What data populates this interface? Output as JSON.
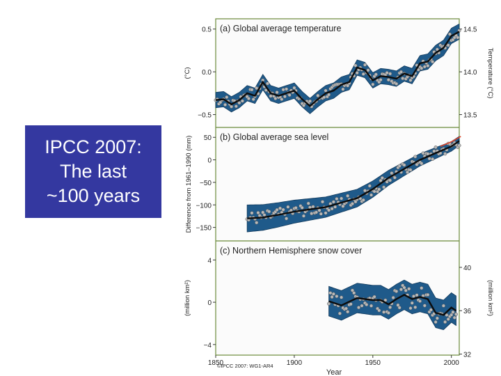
{
  "callout": {
    "line1": "IPCC 2007:",
    "line2": "The last",
    "line3": "~100 years"
  },
  "colors": {
    "band": "#1f5a8a",
    "bandOutline": "#123a5c",
    "curve": "#0c0c0c",
    "points": "#b9b9b9",
    "recent": "#e0452a",
    "panelBorder": "#6a8a3a"
  },
  "chart_data": {
    "type": "line",
    "title": "",
    "xlabel": "Year",
    "xlim": [
      1850,
      2005
    ],
    "xticks": [
      1850,
      1900,
      1950,
      2000
    ],
    "credit": "©IPCC 2007: WG1-AR4",
    "panels": [
      {
        "id": "a",
        "title": "(a) Global average temperature",
        "ylabel": "(°C)",
        "ylim": [
          -0.65,
          0.62
        ],
        "yticks": [
          -0.5,
          0.0,
          0.5
        ],
        "ytick_labels": [
          "−0.5",
          "0.0",
          "0.5"
        ],
        "right_ylabel": "Temperature (°C)",
        "right_ticks": [
          {
            "value": 0.5,
            "label": "14.5"
          },
          {
            "value": 0.0,
            "label": "14.0"
          },
          {
            "value": -0.5,
            "label": "13.5"
          }
        ],
        "x_start": 1850,
        "curve": [
          [
            1850,
            -0.33
          ],
          [
            1855,
            -0.32
          ],
          [
            1860,
            -0.38
          ],
          [
            1865,
            -0.33
          ],
          [
            1870,
            -0.25
          ],
          [
            1875,
            -0.28
          ],
          [
            1880,
            -0.12
          ],
          [
            1885,
            -0.25
          ],
          [
            1890,
            -0.28
          ],
          [
            1895,
            -0.25
          ],
          [
            1900,
            -0.22
          ],
          [
            1905,
            -0.32
          ],
          [
            1910,
            -0.4
          ],
          [
            1915,
            -0.32
          ],
          [
            1920,
            -0.25
          ],
          [
            1925,
            -0.22
          ],
          [
            1930,
            -0.15
          ],
          [
            1935,
            -0.12
          ],
          [
            1940,
            0.05
          ],
          [
            1945,
            0.02
          ],
          [
            1950,
            -0.1
          ],
          [
            1955,
            -0.05
          ],
          [
            1960,
            -0.06
          ],
          [
            1965,
            -0.08
          ],
          [
            1970,
            -0.02
          ],
          [
            1975,
            -0.05
          ],
          [
            1980,
            0.1
          ],
          [
            1985,
            0.12
          ],
          [
            1990,
            0.22
          ],
          [
            1995,
            0.28
          ],
          [
            2000,
            0.42
          ],
          [
            2005,
            0.47
          ]
        ],
        "uncertainty": 0.09
      },
      {
        "id": "b",
        "title": "(b) Global average sea level",
        "ylabel": "Difference from 1961–1990 (mm)",
        "ylim": [
          -180,
          72
        ],
        "yticks": [
          -150,
          -100,
          -50,
          0,
          50
        ],
        "ytick_labels": [
          "−150",
          "−100",
          "−50",
          "0",
          "50"
        ],
        "x_start": 1870,
        "curve": [
          [
            1870,
            -130
          ],
          [
            1880,
            -128
          ],
          [
            1890,
            -122
          ],
          [
            1900,
            -115
          ],
          [
            1910,
            -110
          ],
          [
            1920,
            -105
          ],
          [
            1930,
            -95
          ],
          [
            1940,
            -85
          ],
          [
            1950,
            -65
          ],
          [
            1960,
            -40
          ],
          [
            1970,
            -20
          ],
          [
            1980,
            0
          ],
          [
            1990,
            15
          ],
          [
            2000,
            30
          ],
          [
            2005,
            42
          ]
        ],
        "uncertainty_start": 30,
        "uncertainty_end": 10,
        "recent_trend": [
          [
            1993,
            30
          ],
          [
            2000,
            40
          ],
          [
            2006,
            52
          ]
        ]
      },
      {
        "id": "c",
        "title": "(c) Northern Hemisphere snow cover",
        "ylabel": "(million km²)",
        "ylim": [
          -5,
          5.8
        ],
        "yticks": [
          -4,
          0,
          4
        ],
        "ytick_labels": [
          "−4",
          "0",
          "4"
        ],
        "right_ylabel": "(million km²)",
        "right_ticks": [
          {
            "value": 3.3,
            "label": "40"
          },
          {
            "value": -0.8,
            "label": "36"
          },
          {
            "value": -4.9,
            "label": "32"
          }
        ],
        "x_start": 1922,
        "curve": [
          [
            1922,
            0.1
          ],
          [
            1930,
            -0.3
          ],
          [
            1940,
            0.4
          ],
          [
            1950,
            0.2
          ],
          [
            1955,
            0.2
          ],
          [
            1960,
            -0.2
          ],
          [
            1965,
            0.3
          ],
          [
            1970,
            0.7
          ],
          [
            1975,
            0.3
          ],
          [
            1980,
            0.5
          ],
          [
            1985,
            0.3
          ],
          [
            1990,
            -1.0
          ],
          [
            1995,
            -1.2
          ],
          [
            2000,
            -0.5
          ],
          [
            2003,
            -0.8
          ]
        ],
        "uncertainty": 1.4
      }
    ]
  }
}
